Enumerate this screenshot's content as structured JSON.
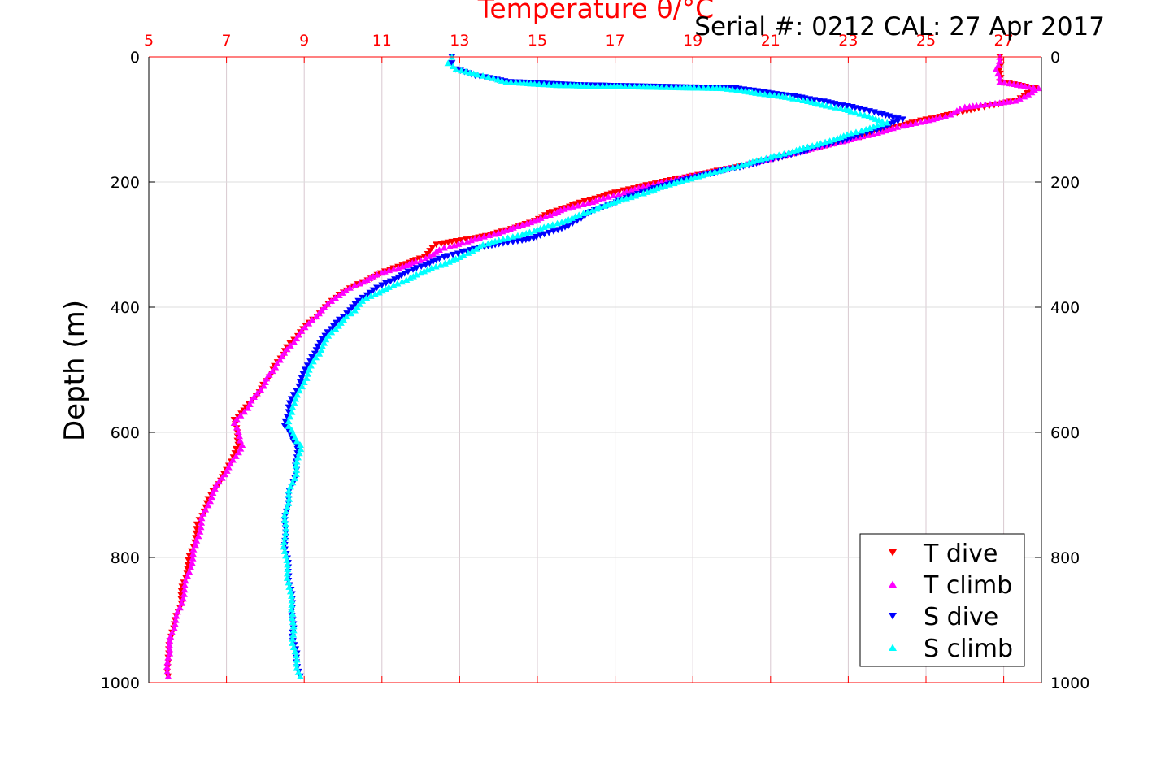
{
  "header": {
    "serial_label": "Serial #: 0212  CAL: 27 Apr 2017"
  },
  "chart_data": {
    "type": "scatter",
    "title": "Temperature θ/°C",
    "xlabel": "Temperature θ/°C",
    "ylabel": "Depth (m)",
    "xlim": [
      5,
      28
    ],
    "ylim": [
      0,
      1000
    ],
    "y_reversed": true,
    "x_ticks": [
      "5",
      "7",
      "9",
      "11",
      "13",
      "15",
      "17",
      "19",
      "21",
      "23",
      "25",
      "27"
    ],
    "y_ticks": [
      "0",
      "200",
      "400",
      "600",
      "800",
      "1000"
    ],
    "grid": true,
    "legend_position": "bottom-right",
    "colors": {
      "x_axis": "#ff0000",
      "grid": "#d8c8d0"
    },
    "series": [
      {
        "name": "T dive",
        "color": "#ff0000",
        "marker": "triangle-down",
        "points": [
          [
            26.9,
            0
          ],
          [
            26.9,
            20
          ],
          [
            26.9,
            40
          ],
          [
            27.8,
            50
          ],
          [
            27.3,
            70
          ],
          [
            26.5,
            80
          ],
          [
            25.8,
            90
          ],
          [
            25.0,
            100
          ],
          [
            24.0,
            115
          ],
          [
            23.2,
            130
          ],
          [
            22.2,
            145
          ],
          [
            21.3,
            160
          ],
          [
            20.2,
            175
          ],
          [
            19.0,
            190
          ],
          [
            17.8,
            205
          ],
          [
            16.8,
            220
          ],
          [
            16.0,
            235
          ],
          [
            15.3,
            250
          ],
          [
            14.8,
            265
          ],
          [
            13.8,
            285
          ],
          [
            12.4,
            300
          ],
          [
            12.1,
            320
          ],
          [
            11.2,
            340
          ],
          [
            10.5,
            360
          ],
          [
            9.9,
            380
          ],
          [
            9.4,
            410
          ],
          [
            8.9,
            440
          ],
          [
            8.5,
            470
          ],
          [
            8.2,
            500
          ],
          [
            7.9,
            530
          ],
          [
            7.5,
            560
          ],
          [
            7.2,
            580
          ],
          [
            7.3,
            620
          ],
          [
            7.0,
            660
          ],
          [
            6.6,
            700
          ],
          [
            6.3,
            740
          ],
          [
            6.1,
            790
          ],
          [
            5.9,
            840
          ],
          [
            5.8,
            880
          ],
          [
            5.6,
            920
          ],
          [
            5.5,
            960
          ],
          [
            5.5,
            990
          ]
        ]
      },
      {
        "name": "T climb",
        "color": "#ff00ff",
        "marker": "triangle-up",
        "points": [
          [
            26.9,
            0
          ],
          [
            26.8,
            20
          ],
          [
            26.9,
            40
          ],
          [
            27.9,
            50
          ],
          [
            27.3,
            70
          ],
          [
            26.0,
            80
          ],
          [
            25.5,
            95
          ],
          [
            24.4,
            110
          ],
          [
            23.5,
            125
          ],
          [
            22.5,
            140
          ],
          [
            21.5,
            155
          ],
          [
            20.5,
            170
          ],
          [
            19.4,
            185
          ],
          [
            18.2,
            200
          ],
          [
            17.3,
            215
          ],
          [
            16.5,
            230
          ],
          [
            15.6,
            245
          ],
          [
            15.0,
            260
          ],
          [
            14.3,
            275
          ],
          [
            13.2,
            295
          ],
          [
            12.6,
            305
          ],
          [
            12.0,
            325
          ],
          [
            11.0,
            345
          ],
          [
            10.3,
            365
          ],
          [
            9.8,
            385
          ],
          [
            9.2,
            420
          ],
          [
            8.8,
            450
          ],
          [
            8.3,
            490
          ],
          [
            8.0,
            520
          ],
          [
            7.6,
            555
          ],
          [
            7.2,
            585
          ],
          [
            7.4,
            620
          ],
          [
            7.1,
            650
          ],
          [
            6.7,
            690
          ],
          [
            6.4,
            730
          ],
          [
            6.2,
            780
          ],
          [
            6.0,
            830
          ],
          [
            5.8,
            880
          ],
          [
            5.6,
            920
          ],
          [
            5.5,
            960
          ],
          [
            5.5,
            990
          ]
        ]
      },
      {
        "name": "S dive",
        "color": "#0000ff",
        "marker": "triangle-down",
        "points": [
          [
            12.8,
            0
          ],
          [
            12.8,
            10
          ],
          [
            12.9,
            20
          ],
          [
            13.4,
            30
          ],
          [
            14.3,
            40
          ],
          [
            16.0,
            45
          ],
          [
            20.1,
            50
          ],
          [
            21.8,
            65
          ],
          [
            23.1,
            80
          ],
          [
            24.4,
            100
          ],
          [
            23.6,
            120
          ],
          [
            22.5,
            140
          ],
          [
            21.3,
            160
          ],
          [
            20.3,
            175
          ],
          [
            19.2,
            190
          ],
          [
            18.0,
            210
          ],
          [
            17.1,
            230
          ],
          [
            16.3,
            250
          ],
          [
            15.8,
            270
          ],
          [
            14.9,
            290
          ],
          [
            13.5,
            305
          ],
          [
            12.6,
            320
          ],
          [
            11.8,
            340
          ],
          [
            11.0,
            365
          ],
          [
            10.5,
            385
          ],
          [
            10.1,
            410
          ],
          [
            9.6,
            440
          ],
          [
            9.2,
            480
          ],
          [
            8.9,
            520
          ],
          [
            8.6,
            560
          ],
          [
            8.5,
            590
          ],
          [
            8.8,
            620
          ],
          [
            8.8,
            660
          ],
          [
            8.6,
            700
          ],
          [
            8.5,
            740
          ],
          [
            8.5,
            780
          ],
          [
            8.6,
            830
          ],
          [
            8.7,
            880
          ],
          [
            8.7,
            920
          ],
          [
            8.8,
            960
          ],
          [
            8.9,
            990
          ]
        ]
      },
      {
        "name": "S climb",
        "color": "#00ffff",
        "marker": "triangle-up",
        "points": [
          [
            12.8,
            0
          ],
          [
            12.7,
            10
          ],
          [
            12.9,
            20
          ],
          [
            13.6,
            30
          ],
          [
            14.2,
            40
          ],
          [
            15.5,
            45
          ],
          [
            19.8,
            50
          ],
          [
            21.5,
            65
          ],
          [
            23.0,
            85
          ],
          [
            24.0,
            105
          ],
          [
            23.2,
            120
          ],
          [
            22.2,
            140
          ],
          [
            21.0,
            160
          ],
          [
            19.8,
            180
          ],
          [
            18.6,
            200
          ],
          [
            17.6,
            220
          ],
          [
            16.6,
            240
          ],
          [
            15.8,
            260
          ],
          [
            14.8,
            280
          ],
          [
            13.6,
            300
          ],
          [
            13.0,
            320
          ],
          [
            12.0,
            345
          ],
          [
            11.3,
            365
          ],
          [
            10.6,
            385
          ],
          [
            10.2,
            410
          ],
          [
            9.7,
            440
          ],
          [
            9.3,
            480
          ],
          [
            9.0,
            520
          ],
          [
            8.7,
            560
          ],
          [
            8.6,
            590
          ],
          [
            8.9,
            620
          ],
          [
            8.8,
            660
          ],
          [
            8.6,
            700
          ],
          [
            8.5,
            740
          ],
          [
            8.5,
            790
          ],
          [
            8.6,
            840
          ],
          [
            8.7,
            890
          ],
          [
            8.7,
            930
          ],
          [
            8.8,
            970
          ],
          [
            8.9,
            990
          ]
        ]
      }
    ]
  }
}
